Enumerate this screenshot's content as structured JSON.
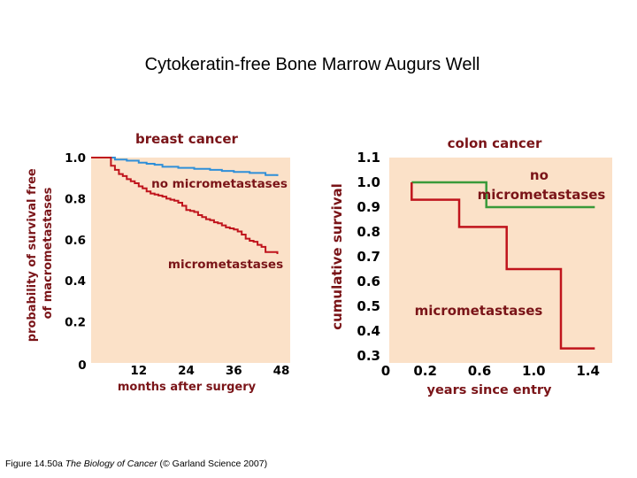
{
  "slide": {
    "title": "Cytokeratin-free Bone Marrow Augurs Well",
    "caption_prefix": "Figure 14.50a ",
    "caption_book": "The Biology of Cancer",
    "caption_suffix": " (© Garland Science 2007)"
  },
  "colors": {
    "plot_background": "#fbe1c8",
    "title_text": "#7a1418",
    "blue_series": "#2f8fd8",
    "red_series": "#c0141c",
    "green_series": "#3a9a3a"
  },
  "chart_data": [
    {
      "type": "line",
      "step": true,
      "title": "breast cancer",
      "xlabel": "months after surgery",
      "ylabel": "probability of survival free of macrometastases",
      "xlim": [
        0,
        48
      ],
      "ylim": [
        0,
        1.0
      ],
      "x_ticks": [
        "0",
        "12",
        "24",
        "36",
        "48"
      ],
      "y_ticks": [
        "0.2",
        "0.4",
        "0.6",
        "0.8",
        "1.0"
      ],
      "series": [
        {
          "name": "no micrometastases",
          "color": "#2f8fd8",
          "x": [
            0,
            6,
            9,
            12,
            14,
            16,
            18,
            22,
            26,
            30,
            33,
            36,
            40,
            44,
            47
          ],
          "y": [
            1.0,
            0.99,
            0.985,
            0.975,
            0.97,
            0.965,
            0.955,
            0.95,
            0.945,
            0.94,
            0.935,
            0.93,
            0.925,
            0.915,
            0.91
          ]
        },
        {
          "name": "micrometastases",
          "color": "#c0141c",
          "x": [
            0,
            5,
            6,
            7,
            8,
            9,
            10,
            11,
            12,
            13,
            14,
            15,
            16,
            17,
            18,
            19,
            20,
            21,
            22,
            23,
            24,
            25,
            26,
            27,
            28,
            29,
            30,
            31,
            32,
            33,
            34,
            35,
            36,
            37,
            38,
            39,
            40,
            41,
            42,
            43,
            44,
            47
          ],
          "y": [
            1.0,
            0.96,
            0.94,
            0.92,
            0.91,
            0.895,
            0.885,
            0.875,
            0.86,
            0.85,
            0.835,
            0.825,
            0.82,
            0.815,
            0.81,
            0.8,
            0.795,
            0.79,
            0.78,
            0.765,
            0.745,
            0.74,
            0.735,
            0.72,
            0.71,
            0.7,
            0.695,
            0.685,
            0.68,
            0.67,
            0.66,
            0.655,
            0.65,
            0.64,
            0.625,
            0.605,
            0.595,
            0.59,
            0.575,
            0.565,
            0.54,
            0.53
          ]
        }
      ]
    },
    {
      "type": "line",
      "step": true,
      "title": "colon cancer",
      "xlabel": "years since entry",
      "ylabel": "cumulative survival",
      "xlim": [
        0,
        1.5
      ],
      "ylim": [
        0.3,
        1.1
      ],
      "x_ticks": [
        "0",
        "0.2",
        "0.6",
        "1.0",
        "1.4"
      ],
      "y_ticks": [
        "0.3",
        "0.4",
        "0.5",
        "0.6",
        "0.7",
        "0.8",
        "0.9",
        "1.0",
        "1.1"
      ],
      "series": [
        {
          "name": "no micrometastases",
          "color": "#3a9a3a",
          "x": [
            0.1,
            0.65,
            1.45
          ],
          "y": [
            1.0,
            0.9,
            0.9
          ]
        },
        {
          "name": "micrometastases",
          "color": "#c0141c",
          "x": [
            0.1,
            0.45,
            0.8,
            1.2,
            1.45
          ],
          "y": [
            0.93,
            0.82,
            0.65,
            0.33,
            0.33
          ]
        }
      ]
    }
  ]
}
